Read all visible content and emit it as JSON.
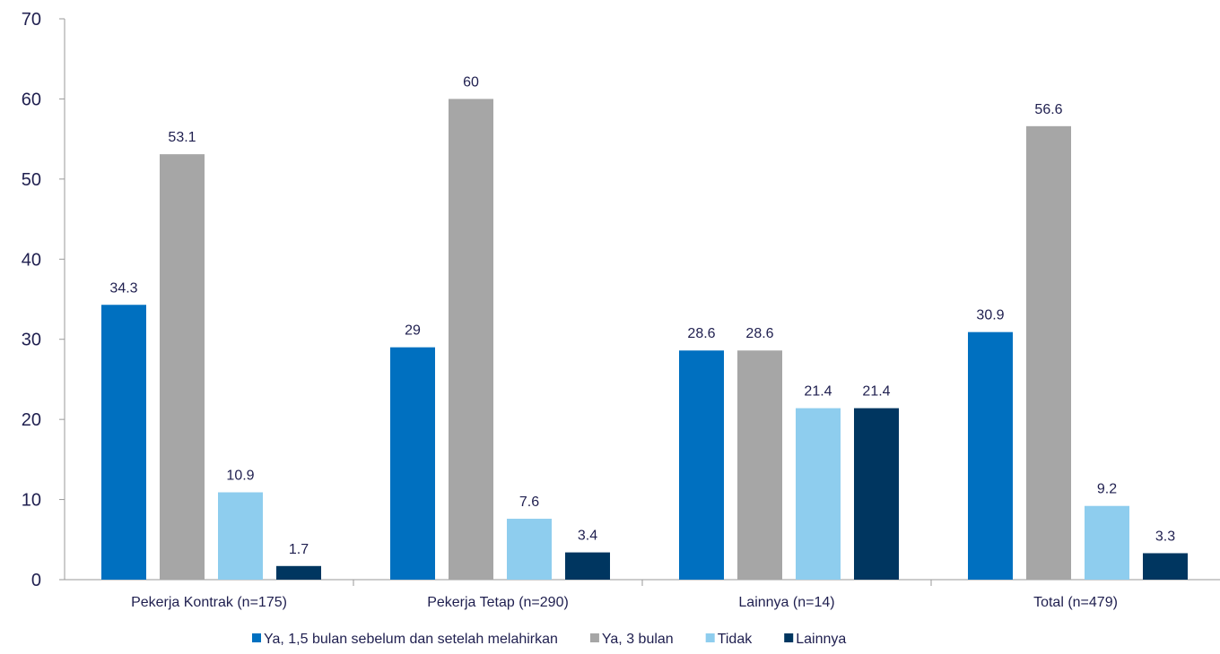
{
  "chart_data": {
    "type": "bar",
    "title": "",
    "xlabel": "",
    "ylabel": "",
    "ylim": [
      0,
      70
    ],
    "yticks": [
      0,
      10,
      20,
      30,
      40,
      50,
      60,
      70
    ],
    "grid": false,
    "legend_position": "bottom",
    "categories": [
      "Pekerja Kontrak (n=175)",
      "Pekerja Tetap (n=290)",
      "Lainnya (n=14)",
      "Total (n=479)"
    ],
    "series": [
      {
        "name": "Ya, 1,5 bulan sebelum dan setelah melahirkan",
        "color": "#0070c0",
        "values": [
          34.3,
          29,
          28.6,
          30.9
        ]
      },
      {
        "name": "Ya, 3 bulan",
        "color": "#a6a6a6",
        "values": [
          53.1,
          60,
          28.6,
          56.6
        ]
      },
      {
        "name": "Tidak",
        "color": "#8ecdee",
        "values": [
          10.9,
          7.6,
          21.4,
          9.2
        ]
      },
      {
        "name": "Lainnya",
        "color": "#003660",
        "values": [
          1.7,
          3.4,
          21.4,
          3.3
        ]
      }
    ]
  }
}
